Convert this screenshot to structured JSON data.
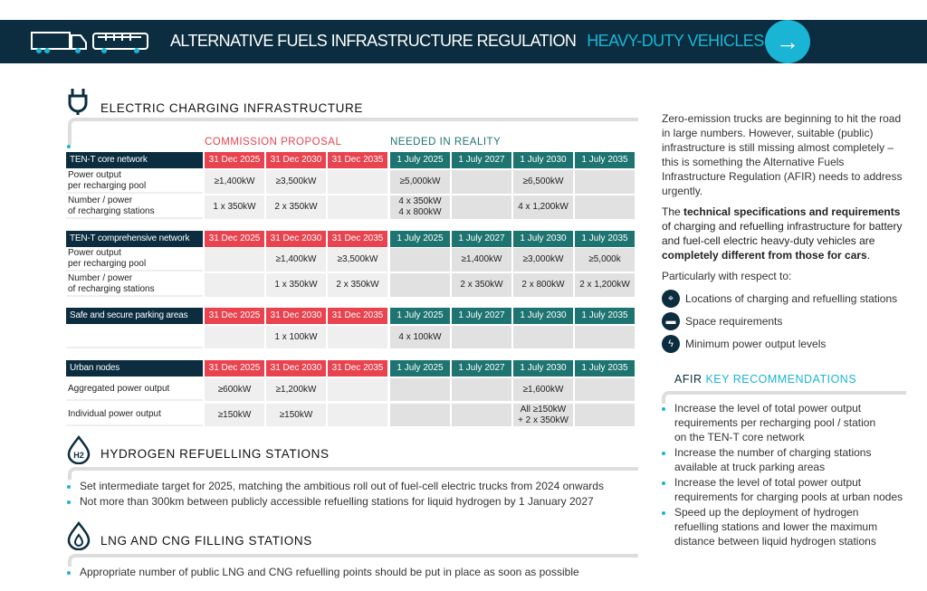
{
  "header": {
    "title": "ALTERNATIVE FUELS INFRASTRUCTURE REGULATION",
    "subtitle": "HEAVY-DUTY VEHICLES",
    "logo": "acea",
    "colors": {
      "band": "#0b2d3f",
      "accent": "#1ab5d5"
    }
  },
  "electric": {
    "title": "ELECTRIC CHARGING INFRASTRUCTURE",
    "group_proposal": "COMMISSION PROPOSAL",
    "group_reality": "NEEDED IN REALITY",
    "colors": {
      "proposal": "#e8434f",
      "reality": "#1e7470",
      "label": "#0b2d3f"
    },
    "tables": [
      {
        "title": "TEN-T core network",
        "dates": [
          "31 Dec 2025",
          "31 Dec 2030",
          "31 Dec 2035",
          "1 July 2025",
          "1 July 2027",
          "1 July 2030",
          "1 July 2035"
        ],
        "rows": [
          {
            "label": "Power output\nper recharging pool",
            "values": [
              "≥1,400kW",
              "≥3,500kW",
              "",
              "≥5,000kW",
              "",
              "≥6,500kW",
              ""
            ]
          },
          {
            "label": "Number / power\nof recharging stations",
            "values": [
              "1 x 350kW",
              "2 x 350kW",
              "",
              "4 x 350kW\n4 x 800kW",
              "",
              "4 x 1,200kW",
              ""
            ]
          }
        ]
      },
      {
        "title": "TEN-T comprehensive network",
        "dates": [
          "31 Dec 2025",
          "31 Dec 2030",
          "31 Dec 2035",
          "1 July 2025",
          "1 July 2027",
          "1 July 2030",
          "1 July 2035"
        ],
        "rows": [
          {
            "label": "Power output\nper recharging pool",
            "values": [
              "",
              "≥1,400kW",
              "≥3,500kW",
              "",
              "≥1,400kW",
              "≥3,000kW",
              "≥5,000k"
            ]
          },
          {
            "label": "Number / power\nof recharging stations",
            "values": [
              "",
              "1 x 350kW",
              "2 x 350kW",
              "",
              "2 x 350kW",
              "2 x 800kW",
              "2 x 1,200kW"
            ]
          }
        ]
      },
      {
        "title": "Safe and secure parking areas",
        "dates": [
          "31 Dec 2025",
          "31 Dec 2030",
          "31 Dec 2035",
          "1 July 2025",
          "1 July 2027",
          "1 July 2030",
          "1 July 2035"
        ],
        "rows": [
          {
            "label": "",
            "values": [
              "",
              "1 x 100kW",
              "",
              "4 x 100kW",
              "",
              "",
              ""
            ]
          }
        ]
      },
      {
        "title": "Urban nodes",
        "dates": [
          "31 Dec 2025",
          "31 Dec 2030",
          "31 Dec 2035",
          "1 July 2025",
          "1 July 2027",
          "1 July 2030",
          "1 July 2035"
        ],
        "rows": [
          {
            "label": "Aggregated power output",
            "values": [
              "≥600kW",
              "≥1,200kW",
              "",
              "",
              "",
              "≥1,600kW",
              ""
            ]
          },
          {
            "label": "Individual power output",
            "values": [
              "≥150kW",
              "≥150kW",
              "",
              "",
              "",
              "All ≥150kW\n+ 2 x 350kW",
              ""
            ]
          }
        ]
      }
    ]
  },
  "hydrogen": {
    "title": "HYDROGEN REFUELLING STATIONS",
    "icon_label": "H2",
    "bullets": [
      "Set intermediate target for 2025, matching the ambitious roll out of fuel-cell electric trucks from 2024 onwards",
      "Not more than 300km between publicly accessible refuelling stations for liquid hydrogen by 1 January 2027"
    ]
  },
  "lng": {
    "title": "LNG AND CNG FILLING STATIONS",
    "bullets": [
      "Appropriate number of public LNG and CNG refuelling points should be put in place as soon as possible"
    ]
  },
  "sidebar": {
    "intro": "Zero-emission trucks are beginning to hit the road in large numbers. However, suitable (public) infrastructure is still missing almost completely – this is something the Alternative Fuels Infrastructure Regulation (AFIR) needs to address urgently.",
    "para2": [
      "The ",
      "technical specifications and requirements",
      " of charging and refuelling infrastructure for battery and fuel-cell electric heavy-duty vehicles are ",
      "completely different from those for cars",
      "."
    ],
    "respect": "Particularly with respect to:",
    "items": [
      {
        "icon": "location-pin-icon",
        "label": "Locations of charging and refuelling stations"
      },
      {
        "icon": "ruler-icon",
        "label": "Space requirements"
      },
      {
        "icon": "lightning-icon",
        "label": "Minimum power output levels"
      }
    ],
    "rec_title_a": "AFIR",
    "rec_title_b": "KEY RECOMMENDATIONS",
    "recommendations": [
      "Increase the level of total power output\nrequirements per recharging pool / station\non the TEN-T core network",
      "Increase the number of charging stations\navailable at truck parking areas",
      "Increase the level of total power output\nrequirements for charging pools at urban nodes",
      "Speed up the deployment of hydrogen\nrefuelling stations and lower the maximum\ndistance between liquid hydrogen stations"
    ]
  }
}
